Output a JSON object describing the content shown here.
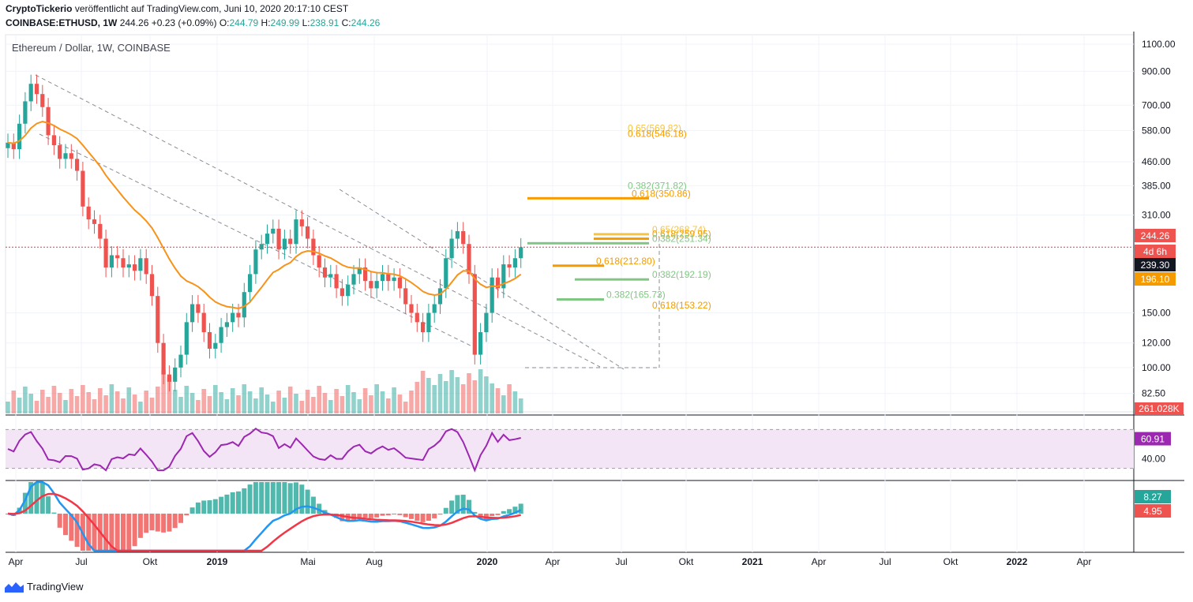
{
  "header": {
    "author": "CryptoTickerio",
    "published": "veröffentlicht auf TradingView.com, Juni 10, 2020 20:17:10 CEST",
    "symbol": "COINBASE:ETHUSD, 1W",
    "last": "244.26",
    "change": "+0.23 (+0.09%)",
    "open_label": "O:",
    "open": "244.79",
    "high_label": "H:",
    "high": "249.99",
    "low_label": "L:",
    "low": "238.91",
    "close_label": "C:",
    "close": "244.26"
  },
  "chart_title": "Ethereum / Dollar, 1W, COINBASE",
  "footer_brand": "TradingView",
  "colors": {
    "up": "#26a69a",
    "down": "#ef5350",
    "ma": "#f7931a",
    "rsi": "#9c27b0",
    "macd": "#2196f3",
    "signal": "#f23645",
    "fib_green": "#81c784",
    "fib_gold": "#f6c343",
    "fib_orange": "#f59b00"
  },
  "chart_data": {
    "type": "candlestick",
    "title": "Ethereum / Dollar, 1W, COINBASE",
    "scale": "log",
    "y_ticks": [
      82.5,
      100,
      120,
      150,
      196.1,
      239.3,
      244.26,
      310,
      385,
      460,
      580,
      700,
      900,
      1100
    ],
    "y_tick_labels": [
      "82.50",
      "100.00",
      "120.00",
      "150.00",
      "196.10",
      "239.30",
      "244.26",
      "310.00",
      "385.00",
      "460.00",
      "580.00",
      "700.00",
      "900.00",
      "1100.00"
    ],
    "x_labels": [
      "Apr",
      "Jul",
      "Okt",
      "2019",
      "Mai",
      "Aug",
      "2020",
      "Apr",
      "Jul",
      "Okt",
      "2021",
      "Apr",
      "Jul",
      "Okt",
      "2022",
      "Apr"
    ],
    "price_badges": [
      {
        "label": "244.26",
        "value": 244.26,
        "color": "#ef5350"
      },
      {
        "label": "4d 6h",
        "value": 225,
        "color": "#ef5350"
      },
      {
        "label": "239.30",
        "value": 207,
        "color": "#131722"
      },
      {
        "label": "196.10",
        "value": 190,
        "color": "#f59b00"
      }
    ],
    "volume_badge": "261.028K",
    "closes": [
      530,
      505,
      610,
      720,
      820,
      760,
      690,
      560,
      520,
      470,
      490,
      470,
      430,
      330,
      300,
      290,
      260,
      210,
      230,
      225,
      210,
      215,
      205,
      225,
      200,
      170,
      120,
      95,
      90,
      100,
      110,
      140,
      160,
      150,
      130,
      115,
      120,
      135,
      140,
      150,
      145,
      175,
      200,
      240,
      250,
      270,
      280,
      240,
      260,
      250,
      300,
      285,
      260,
      230,
      210,
      195,
      200,
      180,
      170,
      185,
      200,
      210,
      190,
      180,
      190,
      200,
      190,
      195,
      180,
      160,
      150,
      140,
      130,
      150,
      160,
      180,
      225,
      260,
      275,
      250,
      200,
      110,
      130,
      150,
      195,
      180,
      215,
      210,
      225,
      244
    ],
    "fib_levels": [
      {
        "label": "0.65(569.82)",
        "value": 569.82,
        "color": "#f6c343"
      },
      {
        "label": "0.618(546.18)",
        "value": 546.18,
        "color": "#f59b00"
      },
      {
        "label": "0.382(371.82)",
        "value": 371.82,
        "color": "#81c784"
      },
      {
        "label": "0.618(350.86)",
        "value": 350.86,
        "color": "#f59b00"
      },
      {
        "label": "0.65(268.74)",
        "value": 268.74,
        "color": "#f6c343"
      },
      {
        "label": "0.618(259.95)",
        "value": 259.95,
        "color": "#f59b00"
      },
      {
        "label": "0.382(251.34)",
        "value": 251.34,
        "color": "#81c784"
      },
      {
        "label": "0.618(212.80)",
        "value": 212.8,
        "color": "#f59b00"
      },
      {
        "label": "0.382(192.19)",
        "value": 192.19,
        "color": "#81c784"
      },
      {
        "label": "0.382(165.73)",
        "value": 165.73,
        "color": "#81c784"
      },
      {
        "label": "0.618(153.22)",
        "value": 153.22,
        "color": "#f59b00"
      }
    ],
    "rsi": {
      "ticks": [
        40
      ],
      "tick_labels": [
        "40.00"
      ],
      "last_label": "60.91",
      "last": 60.91,
      "band": [
        30,
        70
      ]
    },
    "macd": {
      "badges": [
        {
          "label": "8.27",
          "color": "#26a69a"
        },
        {
          "label": "4.95",
          "color": "#ef5350"
        }
      ]
    }
  }
}
